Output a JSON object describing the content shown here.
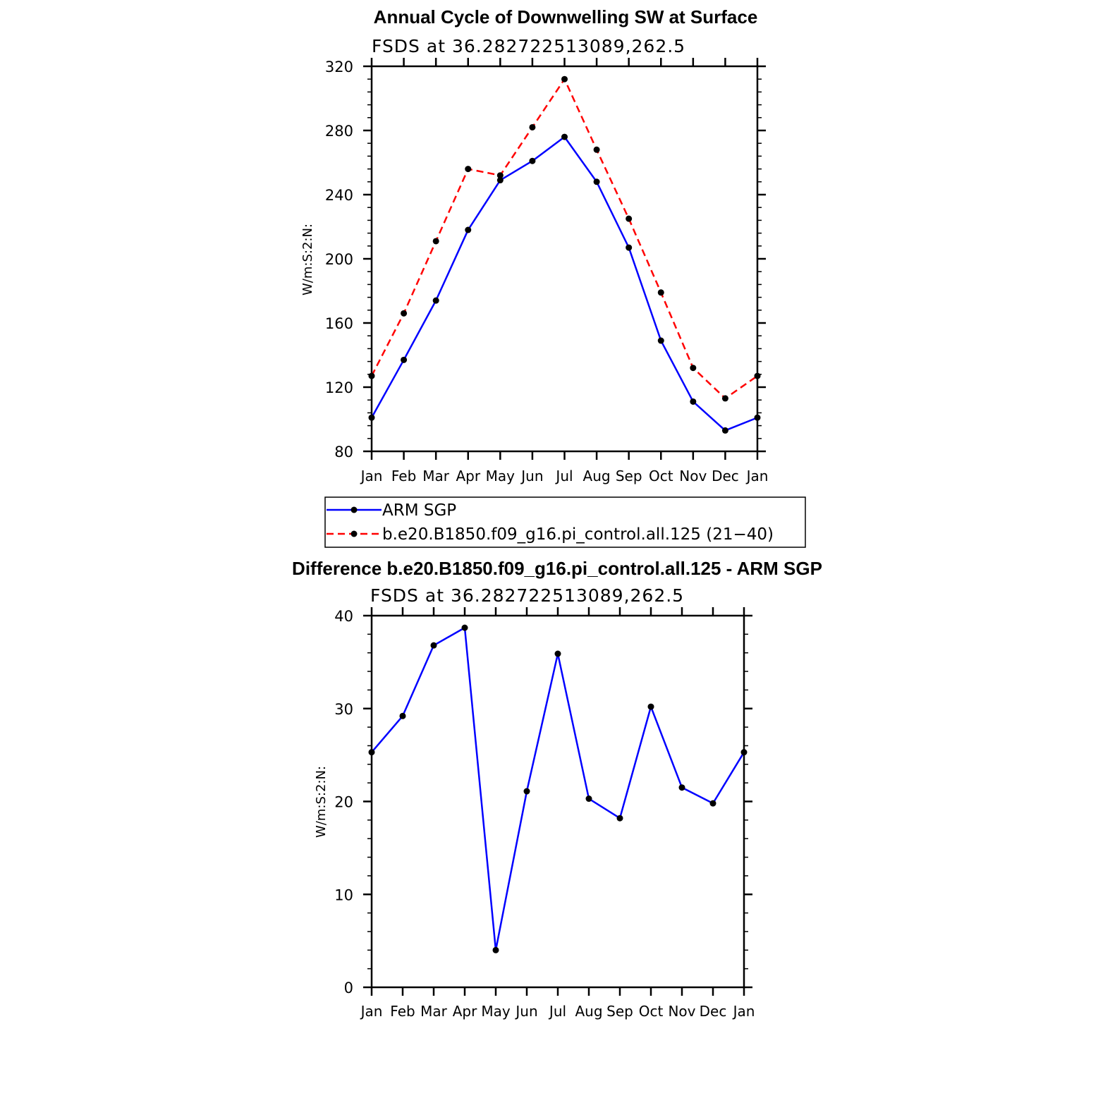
{
  "chart_data": [
    {
      "type": "line",
      "title": "Annual Cycle of Downwelling SW at Surface",
      "subtitle": "FSDS at 36.282722513089,262.5",
      "ylabel": "W/m:S:2:N:",
      "xlabel": "",
      "categories": [
        "Jan",
        "Feb",
        "Mar",
        "Apr",
        "May",
        "Jun",
        "Jul",
        "Aug",
        "Sep",
        "Oct",
        "Nov",
        "Dec",
        "Jan"
      ],
      "ylim": [
        80,
        320
      ],
      "yticks": [
        "80",
        "120",
        "160",
        "200",
        "240",
        "280",
        "320"
      ],
      "series": [
        {
          "name": "ARM SGP",
          "color": "#0000ff",
          "dash": "solid",
          "values": [
            101,
            137,
            174,
            218,
            249,
            261,
            276,
            248,
            207,
            149,
            111,
            93,
            101
          ]
        },
        {
          "name": "b.e20.B1850.f09_g16.pi_control.all.125 (21−40)",
          "color": "#ff0000",
          "dash": "dashed",
          "values": [
            127,
            166,
            211,
            256,
            252,
            282,
            312,
            268,
            225,
            179,
            132,
            113,
            127
          ]
        }
      ],
      "legend": "bottom"
    },
    {
      "type": "line",
      "title": "Difference b.e20.B1850.f09_g16.pi_control.all.125 - ARM SGP",
      "subtitle": "FSDS at 36.282722513089,262.5",
      "ylabel": "W/m:S:2:N:",
      "xlabel": "",
      "categories": [
        "Jan",
        "Feb",
        "Mar",
        "Apr",
        "May",
        "Jun",
        "Jul",
        "Aug",
        "Sep",
        "Oct",
        "Nov",
        "Dec",
        "Jan"
      ],
      "ylim": [
        0,
        40
      ],
      "yticks": [
        "0",
        "10",
        "20",
        "30",
        "40"
      ],
      "series": [
        {
          "name": "Difference",
          "color": "#0000ff",
          "dash": "solid",
          "values": [
            25.3,
            29.2,
            36.8,
            38.7,
            4.0,
            21.1,
            35.9,
            20.3,
            18.2,
            30.2,
            21.5,
            19.8,
            25.3
          ]
        }
      ]
    }
  ]
}
